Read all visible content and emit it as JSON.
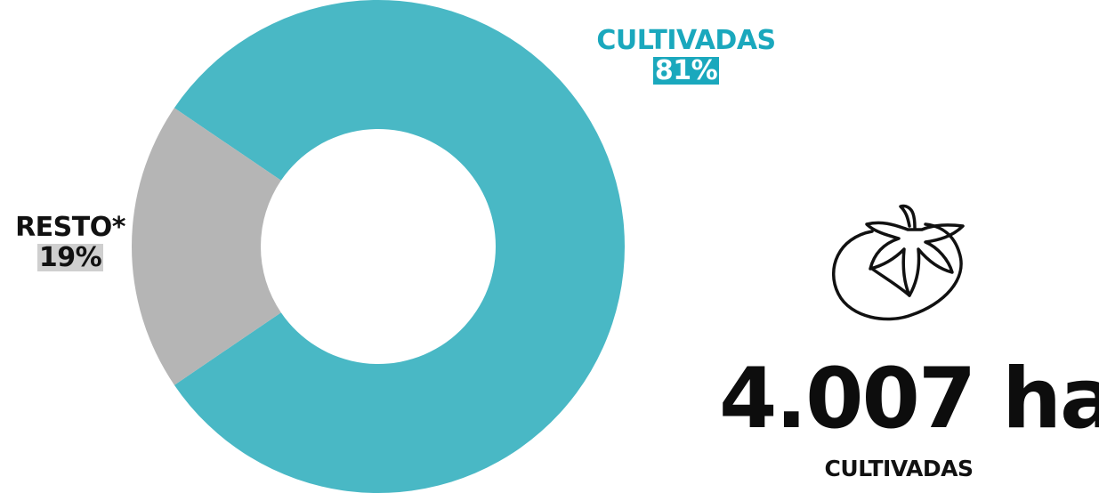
{
  "chart_data": {
    "type": "pie",
    "donut": true,
    "categories": [
      "CULTIVADAS",
      "RESTO*"
    ],
    "values": [
      81,
      19
    ],
    "labels": [
      "81%",
      "19%"
    ],
    "colors": [
      "#49b8c5",
      "#b5b5b5"
    ],
    "legend": "none"
  },
  "summary": {
    "value": "4.007",
    "unit": "ha",
    "caption": "CULTIVADAS",
    "icon": "tomato-icon"
  }
}
